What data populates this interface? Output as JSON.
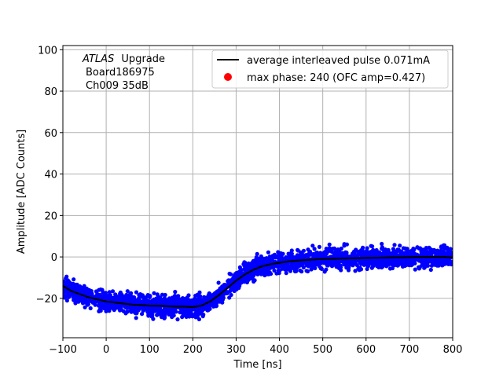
{
  "chart_data": {
    "type": "scatter",
    "xlabel": "Time [ns]",
    "ylabel": "Amplitude [ADC Counts]",
    "xlim": [
      -100,
      800
    ],
    "ylim": [
      -39,
      102
    ],
    "xticks": [
      -100,
      0,
      100,
      200,
      300,
      400,
      500,
      600,
      700,
      800
    ],
    "yticks": [
      -20,
      0,
      20,
      40,
      60,
      80,
      100
    ],
    "xtick_labels": [
      "−100",
      "0",
      "100",
      "200",
      "300",
      "400",
      "500",
      "600",
      "700",
      "800"
    ],
    "ytick_labels": [
      "−20",
      "0",
      "20",
      "40",
      "60",
      "80",
      "100"
    ],
    "grid": true,
    "legend_position": "top-right",
    "annotation": {
      "experiment": "ATLAS",
      "word": "Upgrade",
      "line2": "Board186975",
      "line3": "Ch009 35dB"
    },
    "series": [
      {
        "name": "average interleaved pulse 0.071mA",
        "kind": "line",
        "color": "#000000",
        "x": [
          -100,
          -80,
          -60,
          -40,
          -20,
          0,
          20,
          40,
          60,
          80,
          100,
          120,
          140,
          160,
          180,
          200,
          220,
          240,
          260,
          280,
          300,
          320,
          340,
          360,
          380,
          400,
          420,
          440,
          460,
          480,
          500,
          520,
          540,
          560,
          580,
          600,
          620,
          640,
          660,
          680,
          700,
          720,
          740,
          760,
          780,
          800
        ],
        "y": [
          -14,
          -16.5,
          -18,
          -19.5,
          -20.5,
          -21.5,
          -22,
          -22.5,
          -23,
          -23.2,
          -23.5,
          -23.5,
          -23.8,
          -24,
          -24,
          -24.2,
          -23.5,
          -21.5,
          -18.5,
          -15,
          -11.5,
          -8.5,
          -6.2,
          -4.5,
          -3.5,
          -2.8,
          -2.2,
          -1.8,
          -1.5,
          -1.2,
          -1,
          -0.9,
          -0.8,
          -0.7,
          -0.6,
          -0.5,
          -0.4,
          -0.3,
          -0.2,
          -0.2,
          -0.1,
          0,
          0,
          0,
          0,
          -0.3
        ]
      },
      {
        "name": "max phase: 240 (OFC amp=0.427)",
        "kind": "marker",
        "color": "#ff0000"
      },
      {
        "name": "",
        "kind": "scatter-band",
        "color": "#0000ff",
        "spread": 4.5
      }
    ]
  }
}
